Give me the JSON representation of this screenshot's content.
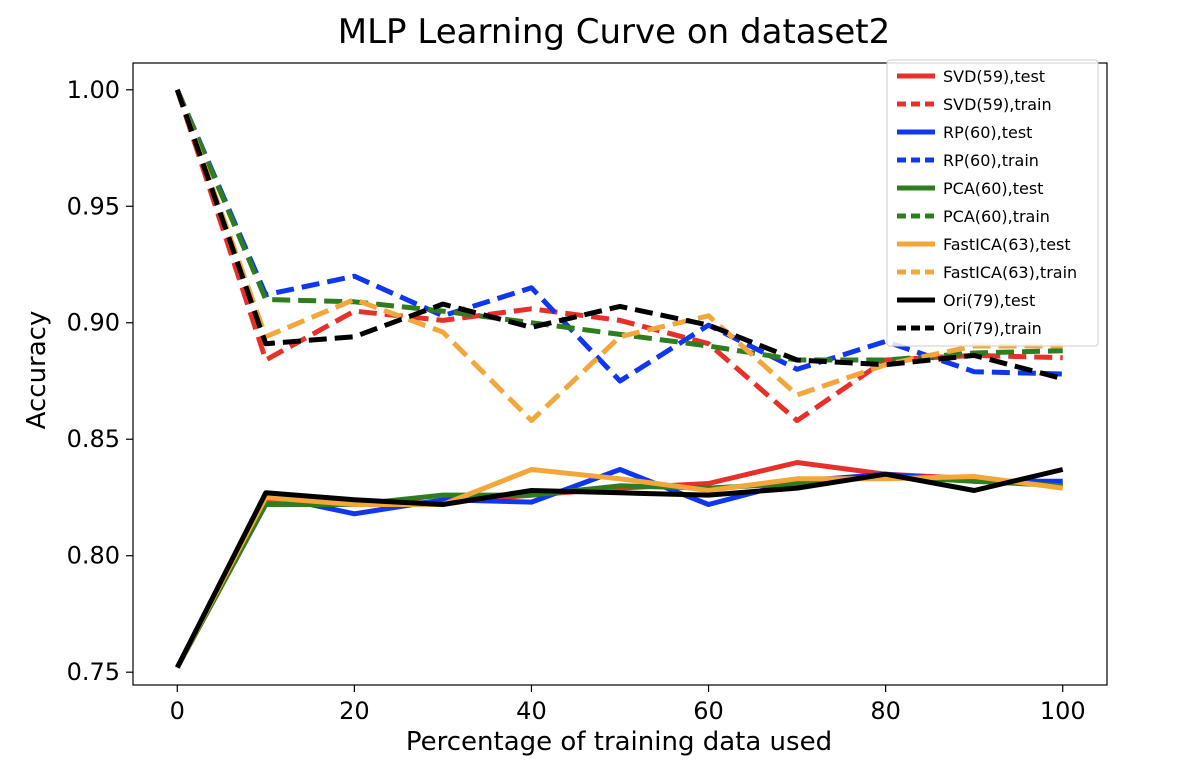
{
  "chart_data": {
    "type": "line",
    "title": "MLP Learning Curve on dataset2",
    "xlabel": "Percentage of training data used",
    "ylabel": "Accuracy",
    "xlim": [
      -5,
      105
    ],
    "ylim": [
      0.7445,
      1.0115
    ],
    "xticks": [
      0,
      20,
      40,
      60,
      80,
      100
    ],
    "xtick_labels": [
      "0",
      "20",
      "40",
      "60",
      "80",
      "100"
    ],
    "yticks": [
      0.75,
      0.8,
      0.85,
      0.9,
      0.95,
      1.0
    ],
    "ytick_labels": [
      "0.75",
      "0.80",
      "0.85",
      "0.90",
      "0.95",
      "1.00"
    ],
    "grid": false,
    "legend_position": "top-right",
    "x": [
      0,
      10,
      20,
      30,
      40,
      50,
      60,
      70,
      80,
      90,
      100
    ],
    "series": [
      {
        "name": "SVD(59),test",
        "color": "#e8302a",
        "dash": "solid",
        "values": [
          0.752,
          0.824,
          0.822,
          0.823,
          0.826,
          0.829,
          0.831,
          0.84,
          0.835,
          0.833,
          0.83
        ]
      },
      {
        "name": "SVD(59),train",
        "color": "#e8302a",
        "dash": "dashed",
        "values": [
          1.0,
          0.884,
          0.905,
          0.901,
          0.906,
          0.901,
          0.891,
          0.858,
          0.884,
          0.886,
          0.885
        ]
      },
      {
        "name": "RP(60),test",
        "color": "#1037f0",
        "dash": "solid",
        "values": [
          0.752,
          0.826,
          0.818,
          0.824,
          0.823,
          0.837,
          0.822,
          0.832,
          0.835,
          0.832,
          0.832
        ]
      },
      {
        "name": "RP(60),train",
        "color": "#1037f0",
        "dash": "dashed",
        "values": [
          1.0,
          0.912,
          0.92,
          0.903,
          0.915,
          0.875,
          0.899,
          0.88,
          0.892,
          0.879,
          0.878
        ]
      },
      {
        "name": "PCA(60),test",
        "color": "#2e7d1e",
        "dash": "solid",
        "values": [
          0.752,
          0.822,
          0.822,
          0.826,
          0.826,
          0.83,
          0.829,
          0.831,
          0.834,
          0.832,
          0.83
        ]
      },
      {
        "name": "PCA(60),train",
        "color": "#2e7d1e",
        "dash": "dashed",
        "values": [
          1.0,
          0.91,
          0.909,
          0.905,
          0.9,
          0.895,
          0.89,
          0.884,
          0.884,
          0.887,
          0.888
        ]
      },
      {
        "name": "FastICA(63),test",
        "color": "#f3a73a",
        "dash": "solid",
        "values": [
          0.752,
          0.825,
          0.822,
          0.822,
          0.837,
          0.833,
          0.828,
          0.833,
          0.833,
          0.834,
          0.829
        ]
      },
      {
        "name": "FastICA(63),train",
        "color": "#f3a73a",
        "dash": "dashed",
        "values": [
          1.0,
          0.894,
          0.91,
          0.896,
          0.858,
          0.894,
          0.903,
          0.869,
          0.882,
          0.89,
          0.89
        ]
      },
      {
        "name": "Ori(79),test",
        "color": "#000000",
        "dash": "solid",
        "values": [
          0.752,
          0.827,
          0.824,
          0.822,
          0.828,
          0.827,
          0.826,
          0.829,
          0.835,
          0.828,
          0.837
        ]
      },
      {
        "name": "Ori(79),train",
        "color": "#000000",
        "dash": "dashed",
        "values": [
          1.0,
          0.891,
          0.894,
          0.908,
          0.898,
          0.907,
          0.899,
          0.884,
          0.882,
          0.886,
          0.876
        ]
      }
    ]
  }
}
